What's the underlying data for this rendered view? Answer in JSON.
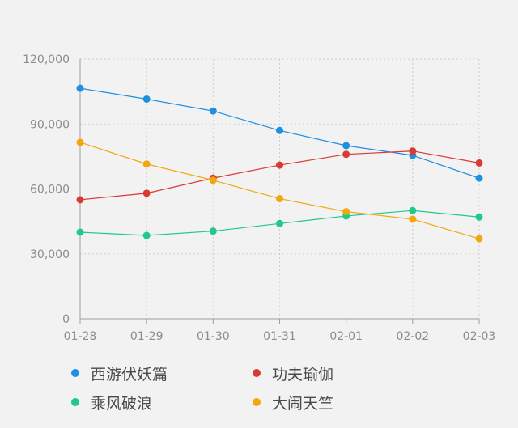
{
  "chart_data": {
    "type": "line",
    "title": "",
    "xlabel": "",
    "ylabel": "",
    "categories": [
      "01-28",
      "01-29",
      "01-30",
      "01-31",
      "02-01",
      "02-02",
      "02-03"
    ],
    "ylim": [
      0,
      120000
    ],
    "yticks": [
      0,
      30000,
      60000,
      90000,
      120000
    ],
    "ytick_labels": [
      "0",
      "30,000",
      "60,000",
      "90,000",
      "120,000"
    ],
    "grid": true,
    "legend_position": "bottom",
    "series": [
      {
        "name": "西游伏妖篇",
        "color": "#1e8fe1",
        "values": [
          106500,
          101500,
          96000,
          87000,
          80000,
          75500,
          65000
        ]
      },
      {
        "name": "功夫瑜伽",
        "color": "#d93a32",
        "values": [
          55000,
          58000,
          65000,
          71000,
          76000,
          77500,
          72000
        ]
      },
      {
        "name": "乘风破浪",
        "color": "#1ec98b",
        "values": [
          40000,
          38500,
          40500,
          44000,
          47500,
          50000,
          47000
        ]
      },
      {
        "name": "大闹天竺",
        "color": "#f2a70f",
        "values": [
          81500,
          71500,
          64000,
          55500,
          49500,
          46000,
          37000
        ]
      }
    ]
  }
}
